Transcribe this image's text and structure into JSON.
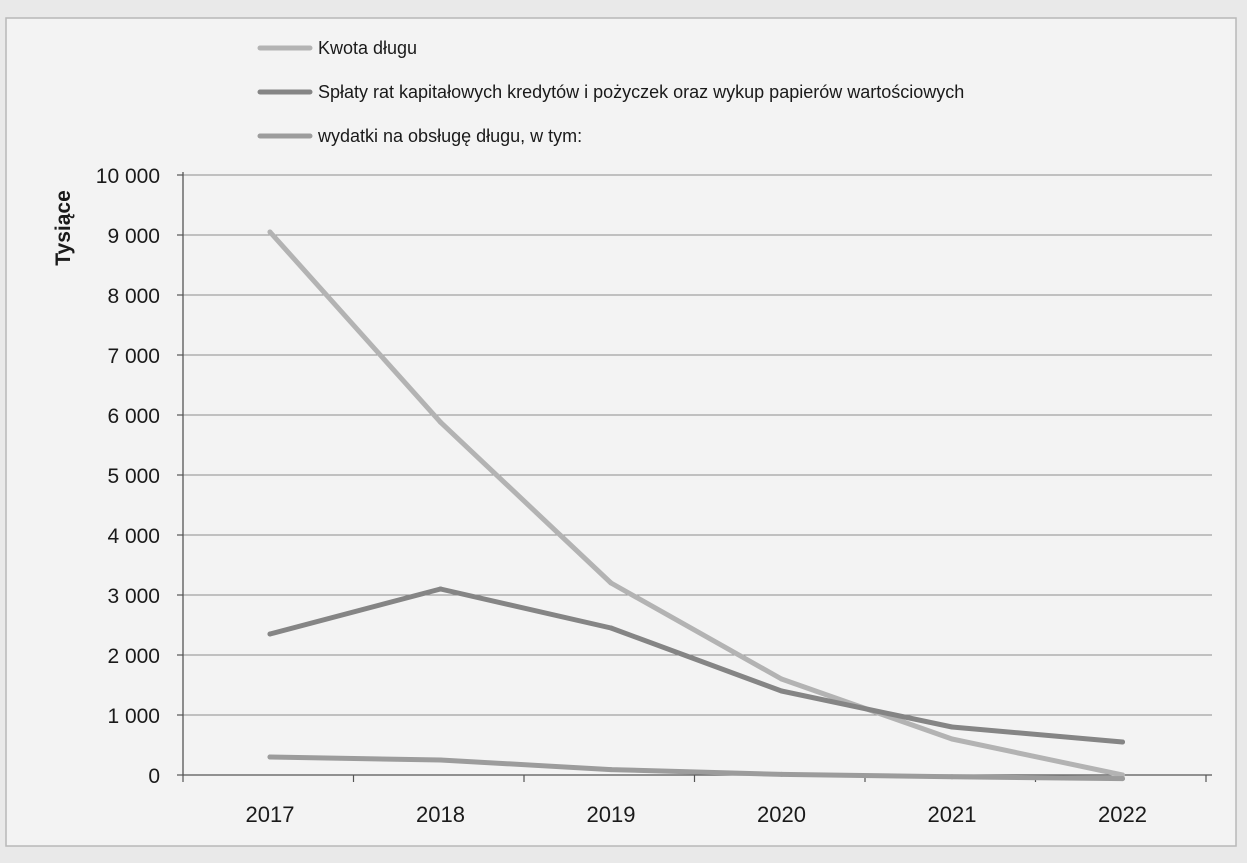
{
  "chart_data": {
    "type": "line",
    "title": "",
    "xlabel": "",
    "ylabel": "Tysiące",
    "categories": [
      "2017",
      "2018",
      "2019",
      "2020",
      "2021",
      "2022"
    ],
    "ylim": [
      0,
      10000
    ],
    "yticks": [
      0,
      1000,
      2000,
      3000,
      4000,
      5000,
      6000,
      7000,
      8000,
      9000,
      10000
    ],
    "ytick_labels": [
      "0",
      "1 000",
      "2 000",
      "3 000",
      "4 000",
      "5 000",
      "6 000",
      "7 000",
      "8 000",
      "9 000",
      "10 000"
    ],
    "grid": true,
    "legend_position": "top",
    "series": [
      {
        "name": "Kwota długu",
        "values": [
          9050,
          5880,
          3200,
          1600,
          600,
          0
        ],
        "color": "#b3b3b3"
      },
      {
        "name": "Spłaty rat kapitałowych kredytów i pożyczek oraz wykup papierów wartościowych",
        "values": [
          2350,
          3100,
          2450,
          1400,
          800,
          550
        ],
        "color": "#858585"
      },
      {
        "name": " wydatki na obsługę długu, w tym:",
        "values": [
          300,
          250,
          90,
          10,
          -30,
          -60
        ],
        "color": "#9c9c9c"
      }
    ]
  }
}
